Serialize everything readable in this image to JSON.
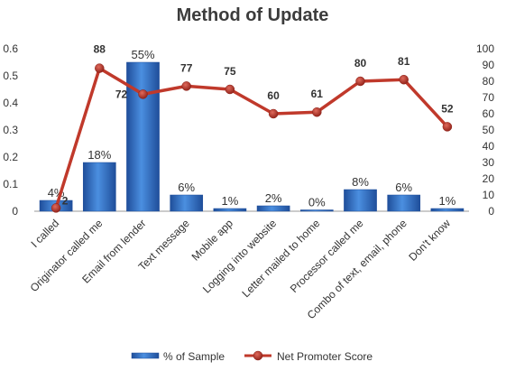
{
  "chart_data": {
    "type": "bar",
    "title": "Method of Update",
    "categories": [
      "I called",
      "Originator called me",
      "Email from lender",
      "Text message",
      "Mobile app",
      "Logging into website",
      "Letter mailed to home",
      "Processor called me",
      "Combo of text, email, phone",
      "Don't know"
    ],
    "series": [
      {
        "name": "% of Sample",
        "type": "bar",
        "axis": "left",
        "values": [
          0.04,
          0.18,
          0.55,
          0.06,
          0.01,
          0.02,
          0.0,
          0.08,
          0.06,
          0.01
        ],
        "labels": [
          "4%",
          "18%",
          "55%",
          "6%",
          "1%",
          "2%",
          "0%",
          "8%",
          "6%",
          "1%"
        ],
        "color": "#3b7dd8"
      },
      {
        "name": "Net Promoter Score",
        "type": "line",
        "axis": "right",
        "values": [
          2,
          88,
          72,
          77,
          75,
          60,
          61,
          80,
          81,
          52
        ],
        "labels": [
          "2",
          "88",
          "72",
          "77",
          "75",
          "60",
          "61",
          "80",
          "81",
          "52"
        ],
        "color": "#c0392b"
      }
    ],
    "y_left": {
      "ylim": [
        0,
        0.6
      ],
      "ticks": [
        0,
        0.1,
        0.2,
        0.3,
        0.4,
        0.5,
        0.6
      ],
      "tick_labels": [
        "0",
        "0.1",
        "0.2",
        "0.3",
        "0.4",
        "0.5",
        "0.6"
      ]
    },
    "y_right": {
      "ylim": [
        0,
        100
      ],
      "ticks": [
        0,
        10,
        20,
        30,
        40,
        50,
        60,
        70,
        80,
        90,
        100
      ],
      "tick_labels": [
        "0",
        "10",
        "20",
        "30",
        "40",
        "50",
        "60",
        "70",
        "80",
        "90",
        "100"
      ]
    },
    "grid": false,
    "legend": "bottom"
  }
}
